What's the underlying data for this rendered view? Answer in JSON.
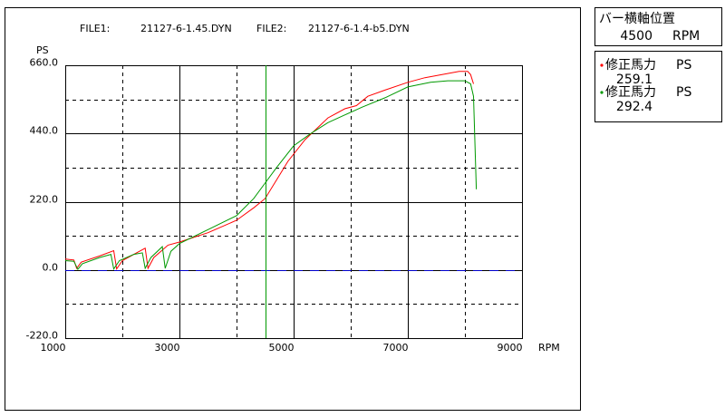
{
  "chart_data": {
    "type": "line",
    "files": [
      {
        "label": "FILE1:",
        "name": "21127-6-1.45.DYN",
        "color": "#ff0000"
      },
      {
        "label": "FILE2:",
        "name": "21127-6-1.4-b5.DYN",
        "color": "#009900"
      }
    ],
    "y_label": "PS",
    "x_label": "RPM",
    "xlim": [
      1000,
      9000
    ],
    "xticks": [
      1000,
      3000,
      5000,
      7000,
      9000
    ],
    "xgrid_minor": [
      2000,
      4000,
      6000,
      8000
    ],
    "ylim": [
      -220,
      660
    ],
    "yticks": [
      {
        "value": 660,
        "label": "660.0"
      },
      {
        "value": 440,
        "label": "440.0"
      },
      {
        "value": 220,
        "label": "220.0"
      },
      {
        "value": 0,
        "label": "0.0"
      },
      {
        "value": -220,
        "label": "-220.0"
      }
    ],
    "ygrid_minor": [
      550,
      330,
      110,
      -110
    ],
    "series": [
      {
        "color": "#ff0000",
        "x": [
          1000,
          1150,
          1200,
          1280,
          1600,
          1850,
          1900,
          2000,
          2300,
          2400,
          2450,
          2550,
          2800,
          3000,
          3500,
          4000,
          4300,
          4500,
          4700,
          4900,
          5200,
          5600,
          5900,
          6100,
          6300,
          6600,
          7000,
          7300,
          7600,
          7900,
          8050,
          8100,
          8150
        ],
        "values": [
          35,
          32,
          5,
          25,
          45,
          62,
          3,
          30,
          60,
          70,
          5,
          40,
          80,
          90,
          120,
          160,
          200,
          230,
          290,
          350,
          420,
          490,
          520,
          530,
          560,
          580,
          605,
          620,
          630,
          640,
          640,
          630,
          600
        ]
      },
      {
        "color": "#009900",
        "x": [
          1000,
          1150,
          1220,
          1300,
          1600,
          1800,
          1850,
          1950,
          2200,
          2350,
          2400,
          2500,
          2700,
          2750,
          2850,
          3000,
          3500,
          4000,
          4300,
          4500,
          4700,
          5000,
          5300,
          5600,
          5900,
          6200,
          6600,
          7000,
          7400,
          7700,
          8000,
          8100,
          8150,
          8200
        ],
        "values": [
          30,
          28,
          2,
          20,
          40,
          50,
          3,
          30,
          50,
          55,
          5,
          40,
          75,
          5,
          60,
          85,
          130,
          175,
          230,
          280,
          330,
          400,
          440,
          475,
          500,
          525,
          555,
          590,
          605,
          610,
          610,
          600,
          560,
          260
        ]
      }
    ],
    "cursor": {
      "title": "バー横軸位置",
      "value": 4500,
      "unit": "RPM",
      "color": "#009900"
    },
    "readouts": [
      {
        "label": "修正馬力",
        "unit": "PS",
        "value": 259.1,
        "color": "#ff0000"
      },
      {
        "label": "修正馬力",
        "unit": "PS",
        "value": 292.4,
        "color": "#009900"
      }
    ]
  }
}
